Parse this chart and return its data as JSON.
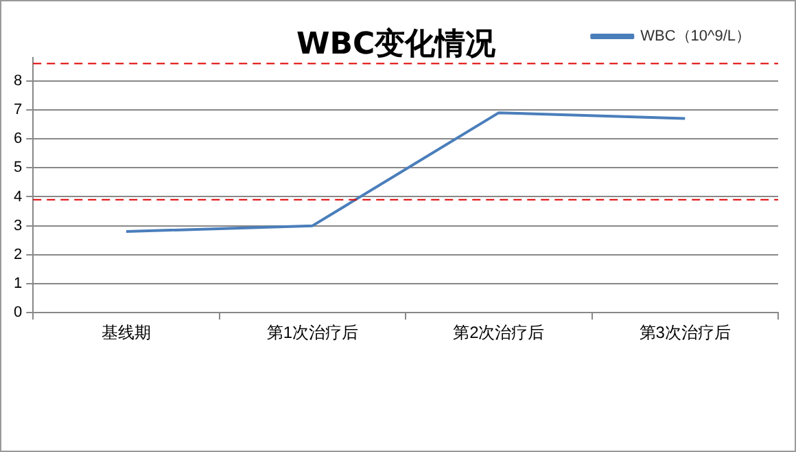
{
  "chart_data": {
    "type": "line",
    "title": "WBC变化情况",
    "categories": [
      "基线期",
      "第1次治疗后",
      "第2次治疗后",
      "第3次治疗后"
    ],
    "series": [
      {
        "name": "WBC（10^9/L）",
        "color": "#4a7ebb",
        "values": [
          2.8,
          3.0,
          6.9,
          6.7
        ]
      }
    ],
    "ylim": [
      0,
      8.8
    ],
    "yticks": [
      0,
      1,
      2,
      3,
      4,
      5,
      6,
      7,
      8
    ],
    "grid": "y",
    "legend": "top right",
    "marker": "none",
    "line_style": "solid",
    "ref_lines": [
      {
        "axis": "y",
        "value": 3.9,
        "color": "#e00000",
        "line_style": "dashed"
      },
      {
        "axis": "y",
        "value": 8.6,
        "color": "#e00000",
        "line_style": "dashed"
      }
    ]
  }
}
